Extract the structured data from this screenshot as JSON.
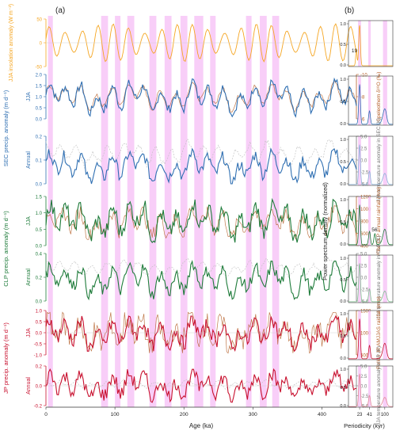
{
  "figure": {
    "panel_a_label": "(a)",
    "panel_b_label": "(b)"
  },
  "colors": {
    "insolation": "#f5a623",
    "sec": "#2f6fb2",
    "sec_light": "#8ab0d8",
    "clp": "#1e7b3a",
    "clp_light": "#7fc08f",
    "jp": "#c8102e",
    "jp_light": "#e48a98",
    "proxy": "#b5602a",
    "temp": "#c0c0c0",
    "shade": "#f7c6f7"
  },
  "chart_data": [
    {
      "type": "line",
      "id": "insolation",
      "xlabel": "",
      "ylabel": "JJA insolation anomaly (W m⁻²)",
      "ylim": [
        -50,
        50
      ],
      "yticks": [
        "50",
        "0",
        "-50"
      ],
      "series": [
        {
          "values": []
        }
      ]
    },
    {
      "type": "line",
      "id": "sec-jja",
      "ylabel": "JJA",
      "ylim": [
        0,
        2
      ],
      "yticks": [
        "2.0",
        "1.5",
        "1.0",
        "0.5",
        "0.0"
      ],
      "y2label": "Speleothem δ¹⁸O (‰)",
      "y2ticks": [
        "-10",
        "-8",
        "-6"
      ],
      "series": [
        {
          "values": []
        },
        {
          "values": []
        }
      ]
    },
    {
      "type": "line",
      "id": "sec-annual",
      "ylabel": "Annual",
      "ylim": [
        0,
        0.3
      ],
      "yticks": [
        "0.2",
        "0.1",
        "0.0"
      ],
      "y2label": "JJA temperature anomaly in SEC (K)",
      "y2ticks": [
        "5.0",
        "2.5",
        "0.0",
        "-2.5",
        "-5.0"
      ],
      "series": [
        {
          "values": []
        },
        {
          "values": []
        }
      ]
    },
    {
      "type": "line",
      "id": "clp-jja",
      "ylabel": "JJA",
      "ylim": [
        0,
        1.6
      ],
      "yticks": [
        "1.5",
        "1.0",
        "0.5",
        "0.0"
      ],
      "y2label": "¹⁰Be CLP annual rainfall (mm)",
      "y2ticks": [
        "1200",
        "1000",
        "800",
        "600",
        "400"
      ],
      "series": [
        {
          "values": []
        },
        {
          "values": []
        }
      ]
    },
    {
      "type": "line",
      "id": "clp-annual",
      "ylabel": "Annual",
      "ylim": [
        0,
        0.5
      ],
      "yticks": [
        "0.4",
        "0.2",
        "0.0"
      ],
      "y2label": "JJA temperature anomaly in CLP (K)",
      "y2ticks": [
        "5.0",
        "2.5",
        "0.0",
        "-2.5",
        "-5.0"
      ],
      "series": [
        {
          "values": []
        },
        {
          "values": []
        }
      ]
    },
    {
      "type": "line",
      "id": "jp-jja",
      "ylabel": "JJA",
      "ylim": [
        -1.2,
        1.2
      ],
      "yticks": [
        "1.0",
        "0.5",
        "0.0",
        "-0.5",
        "-1.0"
      ],
      "y2label": "Pollen JP AMJJAS rainfall (mm)",
      "y2ticks": [
        "1500",
        "1000",
        "500"
      ],
      "series": [
        {
          "values": []
        },
        {
          "values": []
        }
      ]
    },
    {
      "type": "line",
      "id": "jp-annual",
      "ylabel": "Annual",
      "ylim": [
        -0.3,
        0.3
      ],
      "yticks": [
        "0.2",
        "0.0",
        "-0.2"
      ],
      "y2label": "JJA temperature anomaly in JP (K)",
      "y2ticks": [
        "5.0",
        "2.5",
        "0.0",
        "-2.5",
        "-5.0"
      ],
      "series": [
        {
          "values": []
        },
        {
          "values": []
        }
      ]
    }
  ],
  "group_labels": {
    "sec": "SEC precip. anomaly (m d⁻¹)",
    "clp": "CLP precip. anomaly (m d⁻¹)",
    "jp": "JP precip. anomaly (m d⁻¹)"
  },
  "x_axis": {
    "label": "Age (ka)",
    "ticks": [
      "0",
      "100",
      "200",
      "300",
      "400"
    ]
  },
  "spectra": {
    "ylabel": "Power spectrum density (normalized)",
    "xlabel": "Periodicity (kyr)",
    "xticks": [
      "23",
      "41",
      "100"
    ],
    "yticks": [
      "1.0",
      "0.5",
      "0.0"
    ],
    "annotations": {
      "insolation_peak": "19",
      "clp_peak": "56"
    }
  }
}
